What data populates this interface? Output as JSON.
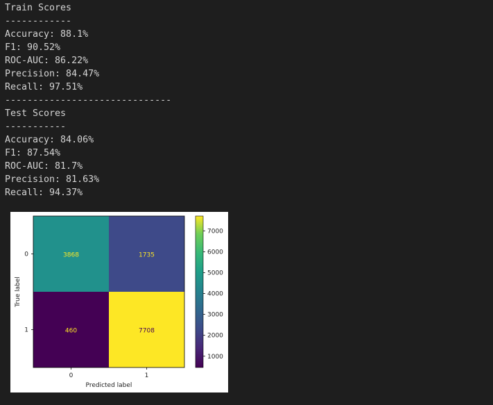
{
  "output_lines": [
    "Train Scores",
    "------------",
    "Accuracy: 88.1%",
    "F1: 90.52%",
    "ROC-AUC: 86.22%",
    "Precision: 84.47%",
    "Recall: 97.51%",
    "------------------------------",
    "Test Scores",
    "-----------",
    "Accuracy: 84.06%",
    "F1: 87.54%",
    "ROC-AUC: 81.7%",
    "Precision: 81.63%",
    "Recall: 94.37%"
  ],
  "colors": {
    "background": "#1e1e1e",
    "text": "#d4d4d4",
    "figure_background": "#ffffff",
    "cells": {
      "00": "#21918c",
      "01": "#3e4a89",
      "10": "#440154",
      "11": "#fde725"
    },
    "cell_text": {
      "00": "#fde725",
      "01": "#fde725",
      "10": "#fde725",
      "11": "#440154"
    }
  },
  "chart_data": {
    "type": "heatmap",
    "title": "",
    "xlabel": "Predicted label",
    "ylabel": "True label",
    "x_categories": [
      "0",
      "1"
    ],
    "y_categories": [
      "0",
      "1"
    ],
    "matrix": [
      [
        3868,
        1735
      ],
      [
        460,
        7708
      ]
    ],
    "colormap": "viridis",
    "colorbar_range": [
      460,
      7708
    ],
    "colorbar_ticks": [
      1000,
      2000,
      3000,
      4000,
      5000,
      6000,
      7000
    ],
    "grid": false
  }
}
